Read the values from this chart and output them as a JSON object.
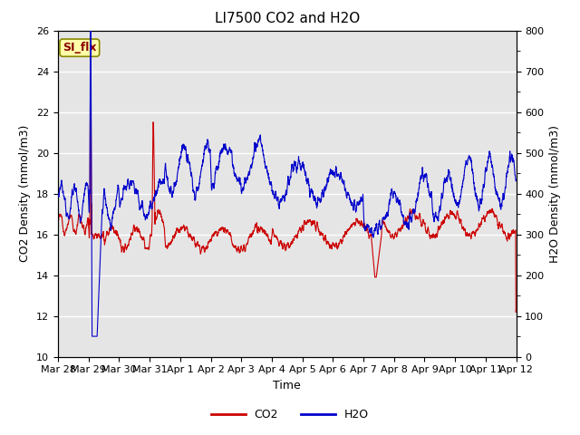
{
  "title": "LI7500 CO2 and H2O",
  "xlabel": "Time",
  "ylabel_left": "CO2 Density (mmol/m3)",
  "ylabel_right": "H2O Density (mmol/m3)",
  "ylim_left": [
    10,
    26
  ],
  "ylim_right": [
    0,
    800
  ],
  "yticks_left": [
    10,
    12,
    14,
    16,
    18,
    20,
    22,
    24,
    26
  ],
  "yticks_right": [
    0,
    100,
    200,
    300,
    400,
    500,
    600,
    700,
    800
  ],
  "xtick_labels": [
    "Mar 28",
    "Mar 29",
    "Mar 30",
    "Mar 31",
    "Apr 1",
    "Apr 2",
    "Apr 3",
    "Apr 4",
    "Apr 5",
    "Apr 6",
    "Apr 7",
    "Apr 8",
    "Apr 9",
    "Apr 10",
    "Apr 11",
    "Apr 12"
  ],
  "co2_color": "#cc0000",
  "h2o_color": "#0000cc",
  "bg_color": "#e5e5e5",
  "annotation_text": "SI_flx",
  "annotation_bg": "#ffffaa",
  "annotation_border": "#888800",
  "legend_co2": "CO2",
  "legend_h2o": "H2O",
  "title_fontsize": 11,
  "axis_fontsize": 9,
  "tick_fontsize": 8
}
